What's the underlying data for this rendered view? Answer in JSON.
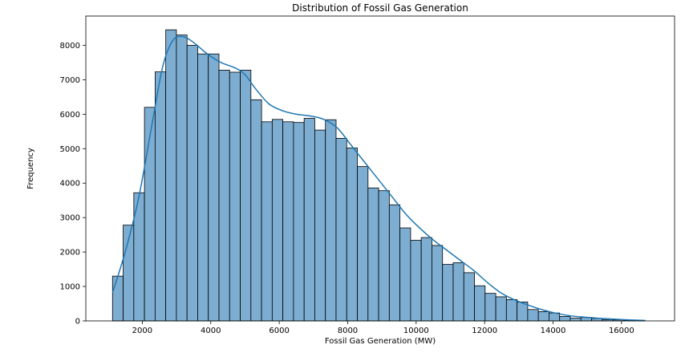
{
  "chart_data": {
    "type": "bar",
    "title": "Distribution of Fossil Gas Generation",
    "xlabel": "Fossil Gas Generation (MW)",
    "ylabel": "Frequency",
    "xlim": [
      350,
      17550
    ],
    "ylim": [
      0,
      8850
    ],
    "x_ticks": [
      2000,
      4000,
      6000,
      8000,
      10000,
      12000,
      14000,
      16000
    ],
    "y_ticks": [
      0,
      1000,
      2000,
      3000,
      4000,
      5000,
      6000,
      7000,
      8000
    ],
    "grid": false,
    "bin_start": 1130,
    "bin_width": 311,
    "counts": [
      1300,
      2780,
      3720,
      6200,
      7230,
      8450,
      8300,
      8000,
      7750,
      7750,
      7280,
      7220,
      7280,
      6420,
      5780,
      5850,
      5780,
      5760,
      5880,
      5540,
      5840,
      5300,
      5020,
      4480,
      3860,
      3780,
      3370,
      2700,
      2340,
      2420,
      2190,
      1640,
      1690,
      1400,
      1020,
      800,
      700,
      620,
      550,
      330,
      270,
      230,
      130,
      80,
      100,
      70,
      40,
      30,
      15,
      10
    ],
    "kde": [
      [
        1130,
        820
      ],
      [
        1500,
        2000
      ],
      [
        1900,
        3600
      ],
      [
        2300,
        5800
      ],
      [
        2600,
        7400
      ],
      [
        2900,
        8150
      ],
      [
        3200,
        8250
      ],
      [
        3500,
        8080
      ],
      [
        3900,
        7750
      ],
      [
        4300,
        7500
      ],
      [
        4700,
        7350
      ],
      [
        5000,
        7150
      ],
      [
        5300,
        6750
      ],
      [
        5700,
        6300
      ],
      [
        6100,
        6100
      ],
      [
        6500,
        6000
      ],
      [
        6900,
        5950
      ],
      [
        7300,
        5850
      ],
      [
        7700,
        5600
      ],
      [
        8100,
        5100
      ],
      [
        8500,
        4600
      ],
      [
        8900,
        4100
      ],
      [
        9300,
        3600
      ],
      [
        9700,
        3100
      ],
      [
        10100,
        2700
      ],
      [
        10500,
        2350
      ],
      [
        10900,
        2050
      ],
      [
        11300,
        1750
      ],
      [
        11700,
        1450
      ],
      [
        12100,
        1100
      ],
      [
        12500,
        800
      ],
      [
        12900,
        600
      ],
      [
        13300,
        450
      ],
      [
        13700,
        320
      ],
      [
        14100,
        220
      ],
      [
        14500,
        150
      ],
      [
        14900,
        110
      ],
      [
        15300,
        80
      ],
      [
        15700,
        55
      ],
      [
        16100,
        35
      ],
      [
        16500,
        20
      ],
      [
        16700,
        15
      ]
    ],
    "bar_color": "#7dadd1",
    "bar_edge_color": "#000000",
    "kde_color": "#1f77b4"
  }
}
